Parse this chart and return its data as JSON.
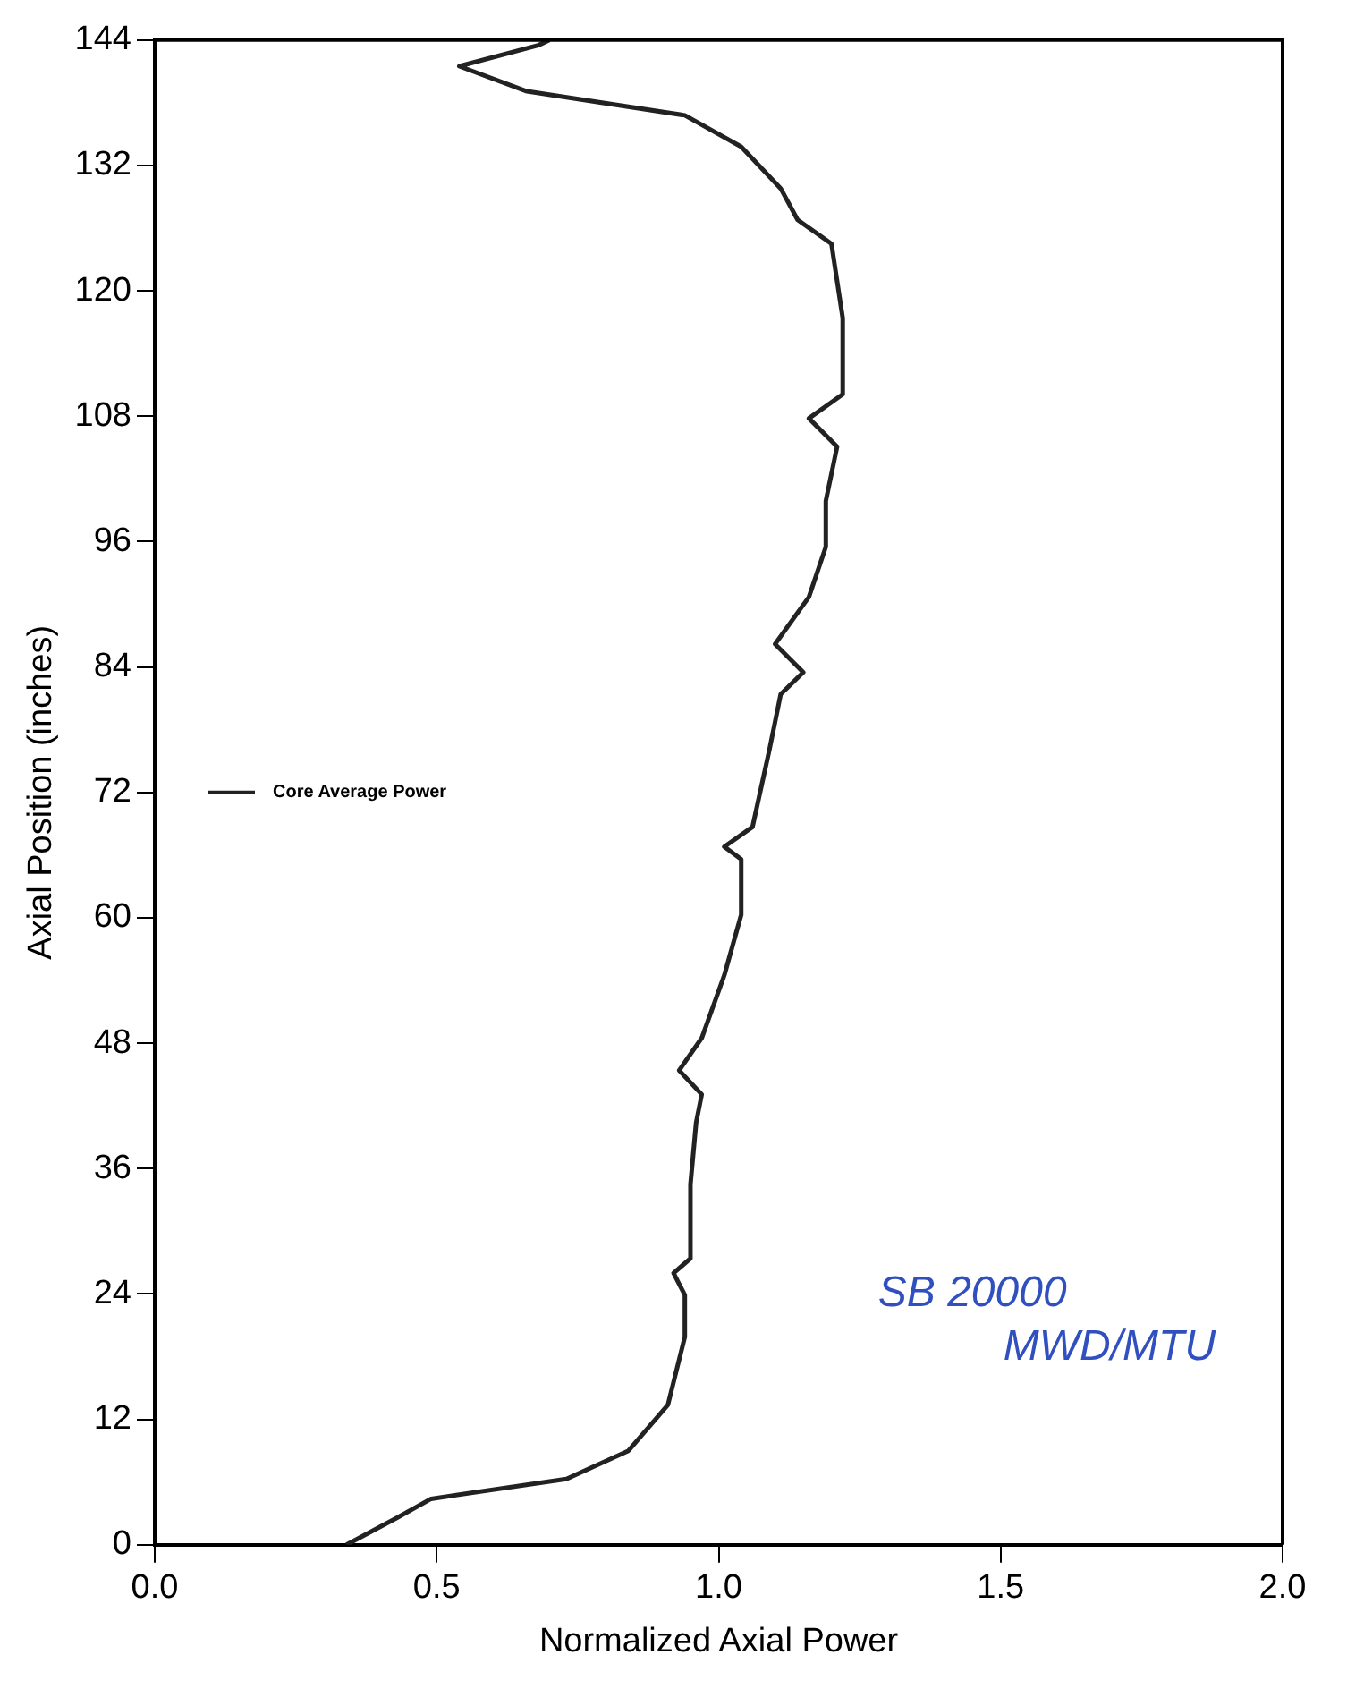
{
  "chart_data": {
    "type": "line",
    "xlabel": "Normalized Axial Power",
    "ylabel": "Axial Position (inches)",
    "xlim": [
      0,
      2
    ],
    "xticks": [
      {
        "value": 0,
        "label": "0.0"
      },
      {
        "value": 0.5,
        "label": "0.5"
      },
      {
        "value": 1,
        "label": "1.0"
      },
      {
        "value": 1.5,
        "label": "1.5"
      },
      {
        "value": 2,
        "label": "2.0"
      }
    ],
    "ylim": [
      0,
      144
    ],
    "yticks": [
      0,
      12,
      24,
      36,
      48,
      60,
      72,
      84,
      96,
      108,
      120,
      132,
      144
    ],
    "series": [
      {
        "name": "Core Average Power",
        "color": "#222222",
        "x": [
          0.34,
          0.43,
          0.49,
          0.73,
          0.84,
          0.91,
          0.94,
          0.94,
          0.92,
          0.95,
          0.95,
          0.96,
          0.97,
          0.93,
          0.97,
          1.01,
          1.04,
          1.04,
          1.01,
          1.06,
          1.09,
          1.11,
          1.15,
          1.1,
          1.16,
          1.19,
          1.19,
          1.21,
          1.16,
          1.22,
          1.22,
          1.2,
          1.14,
          1.11,
          1.04,
          0.94,
          0.66,
          0.54,
          0.68,
          0.7
        ],
        "values": [
          0,
          2.6,
          4.4,
          6.3,
          9.0,
          13.4,
          19.9,
          23.9,
          26.0,
          27.4,
          34.5,
          40.4,
          43.1,
          45.4,
          48.5,
          54.5,
          60.3,
          65.6,
          66.8,
          68.7,
          76.1,
          81.4,
          83.5,
          86.2,
          90.7,
          95.5,
          99.9,
          105.1,
          107.8,
          110.1,
          117.4,
          124.5,
          126.8,
          129.8,
          133.8,
          136.8,
          139.1,
          141.5,
          143.5,
          144
        ]
      }
    ],
    "legend": "left",
    "grid": false,
    "marker": "none",
    "line_style": "solid",
    "annotations": [
      "SB 20000 MWD/MTU"
    ]
  }
}
